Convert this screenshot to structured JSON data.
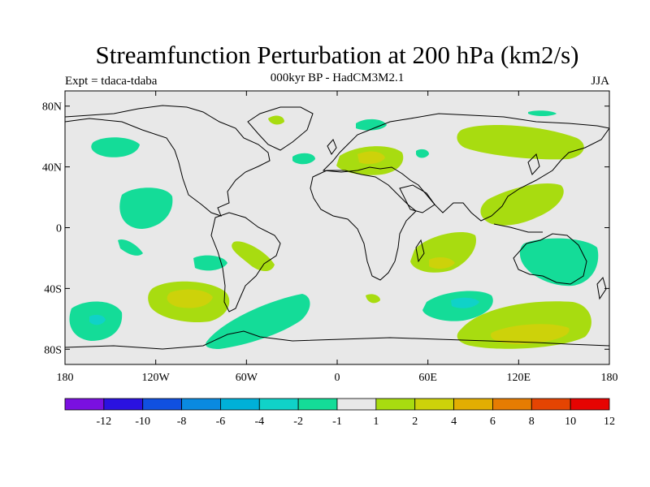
{
  "title": "Streamfunction Perturbation at 200 hPa (km2/s)",
  "subtitle": "000kyr BP - HadCM3M2.1",
  "left_label": "Expt = tdaca-tdaba",
  "right_label": "JJA",
  "map": {
    "lon_range": [
      -180,
      180
    ],
    "lat_range": [
      -90,
      90
    ],
    "x_ticks": [
      {
        "lon": -180,
        "label": "180"
      },
      {
        "lon": -120,
        "label": "120W"
      },
      {
        "lon": -60,
        "label": "60W"
      },
      {
        "lon": 0,
        "label": "0"
      },
      {
        "lon": 60,
        "label": "60E"
      },
      {
        "lon": 120,
        "label": "120E"
      },
      {
        "lon": 180,
        "label": "180"
      }
    ],
    "y_ticks": [
      {
        "lat": 80,
        "label": "80N"
      },
      {
        "lat": 40,
        "label": "40N"
      },
      {
        "lat": 0,
        "label": "0"
      },
      {
        "lat": -40,
        "label": "40S"
      },
      {
        "lat": -80,
        "label": "80S"
      }
    ],
    "background_color": "#e8e8e8"
  },
  "colorbar": {
    "boundaries": [
      -12,
      -10,
      -8,
      -6,
      -4,
      -2,
      -1,
      1,
      2,
      4,
      6,
      8,
      10,
      12
    ],
    "colors": [
      "#7a10e0",
      "#2a12e0",
      "#1050e0",
      "#0a8ae0",
      "#00b0d8",
      "#10d2c8",
      "#14dc98",
      "#e8e8e8",
      "#a8dc10",
      "#cdd20a",
      "#e2ae02",
      "#e67c02",
      "#e44402",
      "#e60402"
    ],
    "labels": [
      "-12",
      "-10",
      "-8",
      "-6",
      "-4",
      "-2",
      "-1",
      "1",
      "2",
      "4",
      "6",
      "8",
      "10",
      "12"
    ]
  }
}
